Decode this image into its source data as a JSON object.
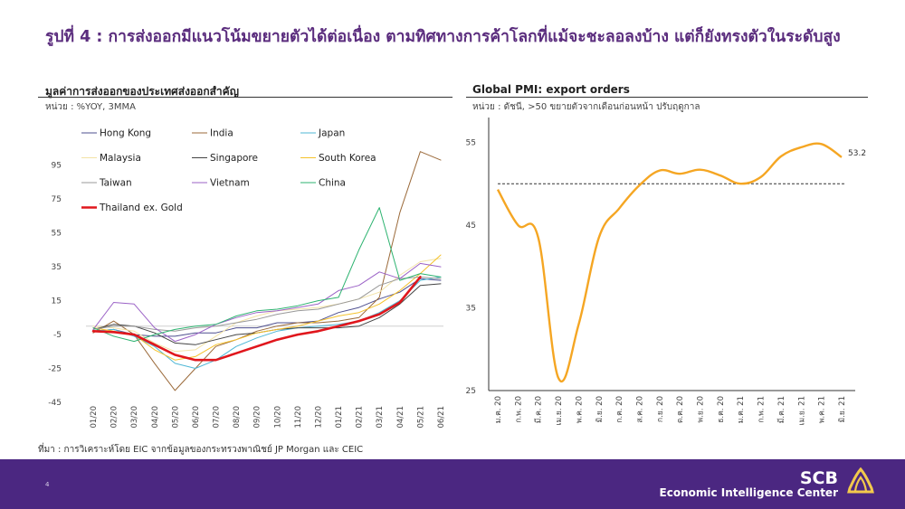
{
  "slide": {
    "title": "รูปที่ 4 : การส่งออกมีแนวโน้มขยายตัวได้ต่อเนื่อง ตามทิศทางการค้าโลกที่แม้จะชะลอลงบ้าง แต่ก็ยังทรงตัวในระดับสูง",
    "source": "ที่มา : การวิเคราะห์โดย EIC จากข้อมูลของกระทรวงพาณิชย์ JP Morgan และ CEIC",
    "page_number": "4"
  },
  "footer": {
    "brand": "SCB",
    "subbrand": "Economic Intelligence Center",
    "logo_icon": "scb-lotus-logo-icon",
    "background": "#4b2781"
  },
  "chart_data": [
    {
      "type": "line",
      "title": "มูลค่าการส่งออกของประเทศส่งออกสำคัญ",
      "unit_note": "หน่วย : %YOY, 3MMA",
      "x": [
        "01/20",
        "02/20",
        "03/20",
        "04/20",
        "05/20",
        "06/20",
        "07/20",
        "08/20",
        "09/20",
        "10/20",
        "11/20",
        "12/20",
        "01/21",
        "02/21",
        "03/21",
        "04/21",
        "05/21",
        "06/21"
      ],
      "y_ticks": [
        95,
        75,
        55,
        35,
        15,
        -5,
        -25,
        -45
      ],
      "ylim": [
        -45,
        105
      ],
      "zero_line": true,
      "legend_position": "top-left",
      "series": [
        {
          "name": "Hong Kong",
          "color": "#4e4f8f",
          "width": 1,
          "values": [
            -3,
            -2,
            -5,
            -6,
            -6,
            -4,
            -4,
            -1,
            -1,
            2,
            2,
            3,
            8,
            11,
            16,
            20,
            28,
            27
          ]
        },
        {
          "name": "India",
          "color": "#9b6a3a",
          "width": 1,
          "values": [
            -4,
            3,
            -5,
            -22,
            -38,
            -25,
            -12,
            -8,
            -3,
            0,
            2,
            2,
            3,
            5,
            17,
            67,
            103,
            98
          ]
        },
        {
          "name": "Japan",
          "color": "#4fb7d6",
          "width": 1,
          "values": [
            -3,
            -2,
            -6,
            -12,
            -22,
            -25,
            -20,
            -12,
            -7,
            -3,
            -1,
            0,
            1,
            3,
            8,
            15,
            27,
            29
          ]
        },
        {
          "name": "Malaysia",
          "color": "#f3e3a6",
          "width": 1,
          "values": [
            0,
            -1,
            -3,
            -10,
            -15,
            -14,
            -6,
            2,
            6,
            9,
            10,
            11,
            13,
            16,
            20,
            30,
            38,
            40
          ]
        },
        {
          "name": "Singapore",
          "color": "#444444",
          "width": 1,
          "values": [
            -2,
            1,
            0,
            -4,
            -10,
            -11,
            -8,
            -5,
            -4,
            -2,
            -1,
            -1,
            -1,
            0,
            5,
            13,
            24,
            25
          ]
        },
        {
          "name": "South Korea",
          "color": "#f5c22b",
          "width": 1,
          "values": [
            -1,
            -3,
            -5,
            -14,
            -20,
            -18,
            -11,
            -8,
            -4,
            -2,
            0,
            3,
            6,
            8,
            13,
            21,
            31,
            42
          ]
        },
        {
          "name": "Taiwan",
          "color": "#999999",
          "width": 1,
          "values": [
            -2,
            0,
            0,
            -2,
            -3,
            -1,
            0,
            2,
            4,
            7,
            9,
            10,
            13,
            16,
            24,
            28,
            29,
            28
          ]
        },
        {
          "name": "Vietnam",
          "color": "#9b62c6",
          "width": 1,
          "values": [
            -2,
            14,
            13,
            -1,
            -9,
            -5,
            1,
            5,
            8,
            9,
            11,
            13,
            21,
            24,
            32,
            28,
            37,
            35
          ]
        },
        {
          "name": "China",
          "color": "#2db370",
          "width": 1,
          "values": [
            -1,
            -6,
            -9,
            -5,
            -2,
            0,
            1,
            6,
            9,
            10,
            12,
            15,
            17,
            45,
            70,
            27,
            31,
            29
          ]
        },
        {
          "name": "Thailand ex. Gold",
          "color": "#e0161c",
          "width": 2.6,
          "values": [
            -3,
            -3.5,
            -5,
            -11,
            -17,
            -20,
            -20,
            -16,
            -12,
            -8,
            -5,
            -3,
            0,
            3,
            7,
            14,
            29,
            null
          ]
        }
      ]
    },
    {
      "type": "line",
      "title": "Global PMI: export orders",
      "unit_note": "หน่วย : ดัชนี, >50 ขยายตัวจากเดือนก่อนหน้า ปรับฤดูกาล",
      "x": [
        "ม.ค. 20",
        "ก.พ. 20",
        "มี.ค. 20",
        "เม.ย. 20",
        "พ.ค. 20",
        "มิ.ย. 20",
        "ก.ค. 20",
        "ส.ค. 20",
        "ก.ย. 20",
        "ต.ค. 20",
        "พ.ย. 20",
        "ธ.ค. 20",
        "ม.ค. 21",
        "ก.พ. 21",
        "มี.ค. 21",
        "เม.ย. 21",
        "พ.ค. 21",
        "มิ.ย. 21"
      ],
      "y_ticks": [
        55,
        45,
        35,
        25
      ],
      "ylim": [
        25,
        58
      ],
      "reference_line": 50,
      "legend_position": "none",
      "series": [
        {
          "color": "#f5a623",
          "width": 2.4,
          "values": [
            49.3,
            45.0,
            43.5,
            26.5,
            33.0,
            43.5,
            47.0,
            49.8,
            51.6,
            51.2,
            51.7,
            51.0,
            50.0,
            50.8,
            53.3,
            54.4,
            54.8,
            53.2
          ]
        }
      ],
      "end_label": "53.2"
    }
  ]
}
